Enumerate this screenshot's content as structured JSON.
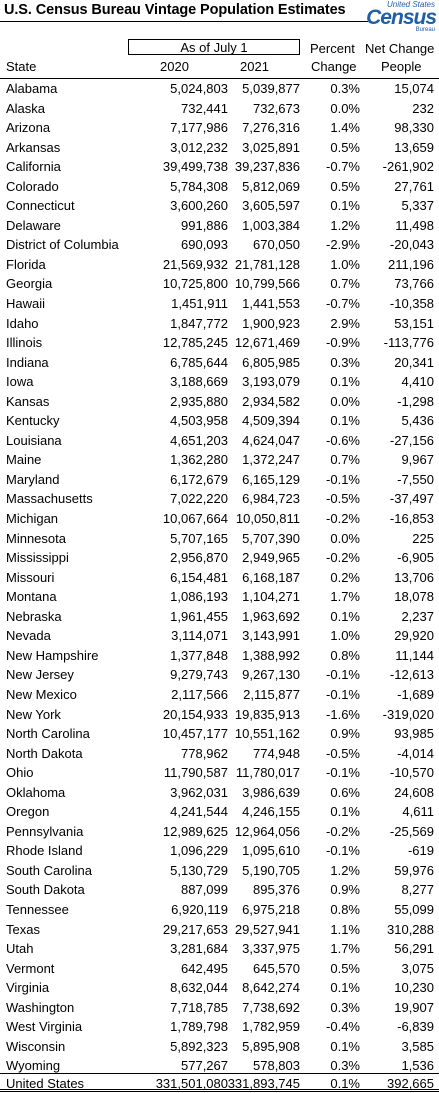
{
  "title": "U.S. Census Bureau Vintage Population Estimates",
  "logo": {
    "top_text": "United States",
    "main_text": "Census",
    "sub_text": "Bureau",
    "color": "#1f5fa8"
  },
  "header": {
    "group_label": "As of July 1",
    "state_label": "State",
    "year1_label": "2020",
    "year2_label": "2021",
    "pct_label_line1": "Percent",
    "pct_label_line2": "Change",
    "net_label_line1": "Net Change",
    "net_label_line2": "People"
  },
  "rows": [
    {
      "state": "Alabama",
      "y2020": "5,024,803",
      "y2021": "5,039,877",
      "pct": "0.3%",
      "net": "15,074"
    },
    {
      "state": "Alaska",
      "y2020": "732,441",
      "y2021": "732,673",
      "pct": "0.0%",
      "net": "232"
    },
    {
      "state": "Arizona",
      "y2020": "7,177,986",
      "y2021": "7,276,316",
      "pct": "1.4%",
      "net": "98,330"
    },
    {
      "state": "Arkansas",
      "y2020": "3,012,232",
      "y2021": "3,025,891",
      "pct": "0.5%",
      "net": "13,659"
    },
    {
      "state": "California",
      "y2020": "39,499,738",
      "y2021": "39,237,836",
      "pct": "-0.7%",
      "net": "-261,902"
    },
    {
      "state": "Colorado",
      "y2020": "5,784,308",
      "y2021": "5,812,069",
      "pct": "0.5%",
      "net": "27,761"
    },
    {
      "state": "Connecticut",
      "y2020": "3,600,260",
      "y2021": "3,605,597",
      "pct": "0.1%",
      "net": "5,337"
    },
    {
      "state": "Delaware",
      "y2020": "991,886",
      "y2021": "1,003,384",
      "pct": "1.2%",
      "net": "11,498"
    },
    {
      "state": "District of Columbia",
      "y2020": "690,093",
      "y2021": "670,050",
      "pct": "-2.9%",
      "net": "-20,043"
    },
    {
      "state": "Florida",
      "y2020": "21,569,932",
      "y2021": "21,781,128",
      "pct": "1.0%",
      "net": "211,196"
    },
    {
      "state": "Georgia",
      "y2020": "10,725,800",
      "y2021": "10,799,566",
      "pct": "0.7%",
      "net": "73,766"
    },
    {
      "state": "Hawaii",
      "y2020": "1,451,911",
      "y2021": "1,441,553",
      "pct": "-0.7%",
      "net": "-10,358"
    },
    {
      "state": "Idaho",
      "y2020": "1,847,772",
      "y2021": "1,900,923",
      "pct": "2.9%",
      "net": "53,151"
    },
    {
      "state": "Illinois",
      "y2020": "12,785,245",
      "y2021": "12,671,469",
      "pct": "-0.9%",
      "net": "-113,776"
    },
    {
      "state": "Indiana",
      "y2020": "6,785,644",
      "y2021": "6,805,985",
      "pct": "0.3%",
      "net": "20,341"
    },
    {
      "state": "Iowa",
      "y2020": "3,188,669",
      "y2021": "3,193,079",
      "pct": "0.1%",
      "net": "4,410"
    },
    {
      "state": "Kansas",
      "y2020": "2,935,880",
      "y2021": "2,934,582",
      "pct": "0.0%",
      "net": "-1,298"
    },
    {
      "state": "Kentucky",
      "y2020": "4,503,958",
      "y2021": "4,509,394",
      "pct": "0.1%",
      "net": "5,436"
    },
    {
      "state": "Louisiana",
      "y2020": "4,651,203",
      "y2021": "4,624,047",
      "pct": "-0.6%",
      "net": "-27,156"
    },
    {
      "state": "Maine",
      "y2020": "1,362,280",
      "y2021": "1,372,247",
      "pct": "0.7%",
      "net": "9,967"
    },
    {
      "state": "Maryland",
      "y2020": "6,172,679",
      "y2021": "6,165,129",
      "pct": "-0.1%",
      "net": "-7,550"
    },
    {
      "state": "Massachusetts",
      "y2020": "7,022,220",
      "y2021": "6,984,723",
      "pct": "-0.5%",
      "net": "-37,497"
    },
    {
      "state": "Michigan",
      "y2020": "10,067,664",
      "y2021": "10,050,811",
      "pct": "-0.2%",
      "net": "-16,853"
    },
    {
      "state": "Minnesota",
      "y2020": "5,707,165",
      "y2021": "5,707,390",
      "pct": "0.0%",
      "net": "225"
    },
    {
      "state": "Mississippi",
      "y2020": "2,956,870",
      "y2021": "2,949,965",
      "pct": "-0.2%",
      "net": "-6,905"
    },
    {
      "state": "Missouri",
      "y2020": "6,154,481",
      "y2021": "6,168,187",
      "pct": "0.2%",
      "net": "13,706"
    },
    {
      "state": "Montana",
      "y2020": "1,086,193",
      "y2021": "1,104,271",
      "pct": "1.7%",
      "net": "18,078"
    },
    {
      "state": "Nebraska",
      "y2020": "1,961,455",
      "y2021": "1,963,692",
      "pct": "0.1%",
      "net": "2,237"
    },
    {
      "state": "Nevada",
      "y2020": "3,114,071",
      "y2021": "3,143,991",
      "pct": "1.0%",
      "net": "29,920"
    },
    {
      "state": "New Hampshire",
      "y2020": "1,377,848",
      "y2021": "1,388,992",
      "pct": "0.8%",
      "net": "11,144"
    },
    {
      "state": "New Jersey",
      "y2020": "9,279,743",
      "y2021": "9,267,130",
      "pct": "-0.1%",
      "net": "-12,613"
    },
    {
      "state": "New Mexico",
      "y2020": "2,117,566",
      "y2021": "2,115,877",
      "pct": "-0.1%",
      "net": "-1,689"
    },
    {
      "state": "New York",
      "y2020": "20,154,933",
      "y2021": "19,835,913",
      "pct": "-1.6%",
      "net": "-319,020"
    },
    {
      "state": "North Carolina",
      "y2020": "10,457,177",
      "y2021": "10,551,162",
      "pct": "0.9%",
      "net": "93,985"
    },
    {
      "state": "North Dakota",
      "y2020": "778,962",
      "y2021": "774,948",
      "pct": "-0.5%",
      "net": "-4,014"
    },
    {
      "state": "Ohio",
      "y2020": "11,790,587",
      "y2021": "11,780,017",
      "pct": "-0.1%",
      "net": "-10,570"
    },
    {
      "state": "Oklahoma",
      "y2020": "3,962,031",
      "y2021": "3,986,639",
      "pct": "0.6%",
      "net": "24,608"
    },
    {
      "state": "Oregon",
      "y2020": "4,241,544",
      "y2021": "4,246,155",
      "pct": "0.1%",
      "net": "4,611"
    },
    {
      "state": "Pennsylvania",
      "y2020": "12,989,625",
      "y2021": "12,964,056",
      "pct": "-0.2%",
      "net": "-25,569"
    },
    {
      "state": "Rhode Island",
      "y2020": "1,096,229",
      "y2021": "1,095,610",
      "pct": "-0.1%",
      "net": "-619"
    },
    {
      "state": "South Carolina",
      "y2020": "5,130,729",
      "y2021": "5,190,705",
      "pct": "1.2%",
      "net": "59,976"
    },
    {
      "state": "South Dakota",
      "y2020": "887,099",
      "y2021": "895,376",
      "pct": "0.9%",
      "net": "8,277"
    },
    {
      "state": "Tennessee",
      "y2020": "6,920,119",
      "y2021": "6,975,218",
      "pct": "0.8%",
      "net": "55,099"
    },
    {
      "state": "Texas",
      "y2020": "29,217,653",
      "y2021": "29,527,941",
      "pct": "1.1%",
      "net": "310,288"
    },
    {
      "state": "Utah",
      "y2020": "3,281,684",
      "y2021": "3,337,975",
      "pct": "1.7%",
      "net": "56,291"
    },
    {
      "state": "Vermont",
      "y2020": "642,495",
      "y2021": "645,570",
      "pct": "0.5%",
      "net": "3,075"
    },
    {
      "state": "Virginia",
      "y2020": "8,632,044",
      "y2021": "8,642,274",
      "pct": "0.1%",
      "net": "10,230"
    },
    {
      "state": "Washington",
      "y2020": "7,718,785",
      "y2021": "7,738,692",
      "pct": "0.3%",
      "net": "19,907"
    },
    {
      "state": "West Virginia",
      "y2020": "1,789,798",
      "y2021": "1,782,959",
      "pct": "-0.4%",
      "net": "-6,839"
    },
    {
      "state": "Wisconsin",
      "y2020": "5,892,323",
      "y2021": "5,895,908",
      "pct": "0.1%",
      "net": "3,585"
    },
    {
      "state": "Wyoming",
      "y2020": "577,267",
      "y2021": "578,803",
      "pct": "0.3%",
      "net": "1,536"
    }
  ],
  "total": {
    "state": "United States",
    "y2020": "331,501,080",
    "y2021": "331,893,745",
    "pct": "0.1%",
    "net": "392,665"
  }
}
